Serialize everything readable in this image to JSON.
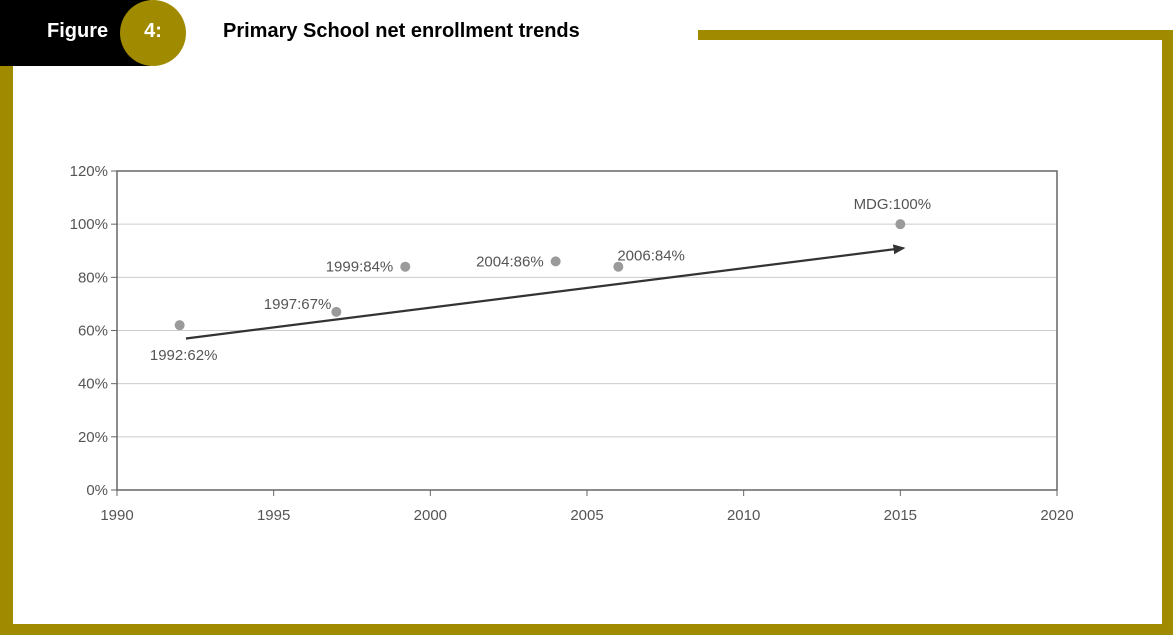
{
  "figure": {
    "word": "Figure",
    "number": "4:",
    "title": "Primary School net enrollment trends"
  },
  "colors": {
    "frame": "#a08a00",
    "header": "#000000",
    "point": "#9a9a9a",
    "arrow": "#333333",
    "grid": "#cccccc"
  },
  "chart_data": {
    "type": "scatter",
    "title": "",
    "xlabel": "",
    "ylabel": "",
    "xlim": [
      1990,
      2020
    ],
    "ylim": [
      0,
      120
    ],
    "x_ticks": [
      {
        "value": 1990,
        "label": "1990"
      },
      {
        "value": 1995,
        "label": "1995"
      },
      {
        "value": 2000,
        "label": "2000"
      },
      {
        "value": 2005,
        "label": "2005"
      },
      {
        "value": 2010,
        "label": "2010"
      },
      {
        "value": 2015,
        "label": "2015"
      },
      {
        "value": 2020,
        "label": "2020"
      }
    ],
    "y_ticks": [
      {
        "value": 0,
        "label": "0%"
      },
      {
        "value": 20,
        "label": "20%"
      },
      {
        "value": 40,
        "label": "40%"
      },
      {
        "value": 60,
        "label": "60%"
      },
      {
        "value": 80,
        "label": "80%"
      },
      {
        "value": 100,
        "label": "100%"
      },
      {
        "value": 120,
        "label": "120%"
      }
    ],
    "grid": true,
    "points": [
      {
        "x": 1992,
        "y": 62,
        "label": "1992:62%",
        "label_pos": "below"
      },
      {
        "x": 1997,
        "y": 67,
        "label": "1997:67%",
        "label_pos": "above-left"
      },
      {
        "x": 1999.2,
        "y": 84,
        "label": "1999:84%",
        "label_pos": "left"
      },
      {
        "x": 2004,
        "y": 86,
        "label": "2004:86%",
        "label_pos": "left"
      },
      {
        "x": 2006,
        "y": 84,
        "label": "2006:84%",
        "label_pos": "above-right"
      },
      {
        "x": 2015,
        "y": 100,
        "label": "MDG:100%",
        "label_pos": "above"
      }
    ],
    "trend_arrow": {
      "from": [
        1992.2,
        57
      ],
      "to": [
        2015.1,
        91
      ]
    }
  }
}
